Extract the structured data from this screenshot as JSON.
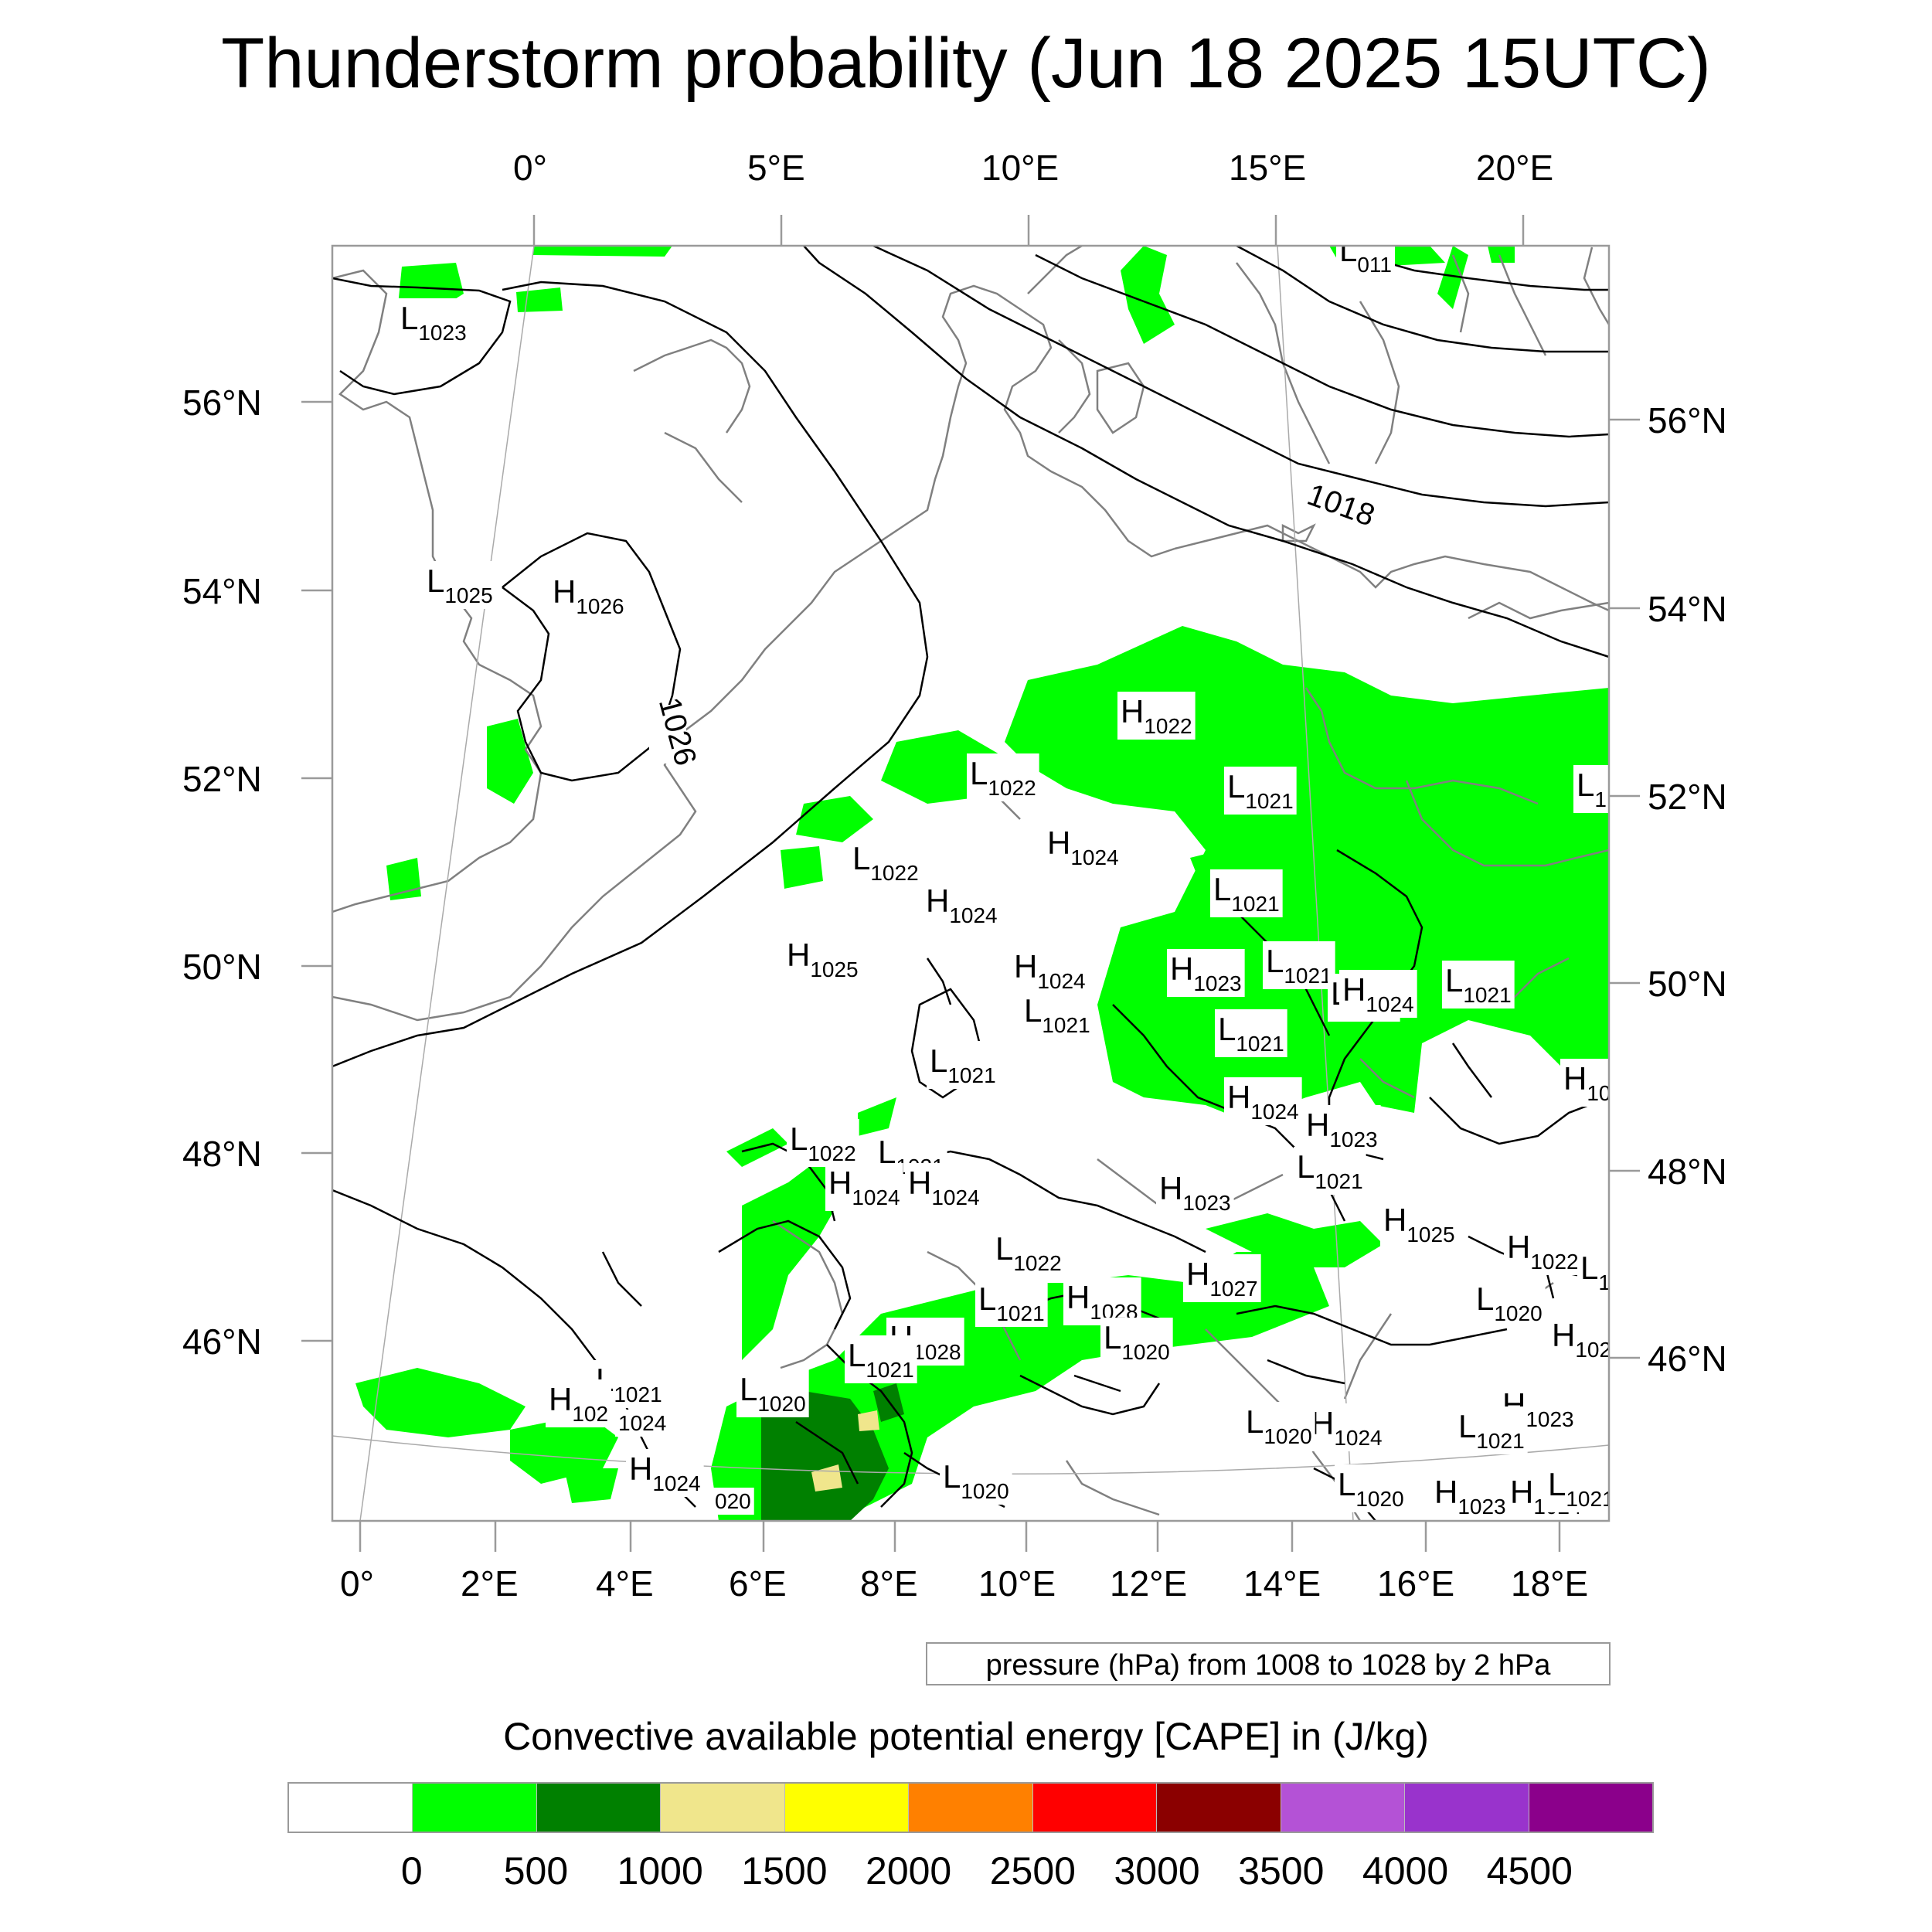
{
  "title": "Thunderstorm probability (Jun 18 2025 15UTC)",
  "top_lon_labels": [
    "0°",
    "5°E",
    "10°E",
    "15°E",
    "20°E"
  ],
  "bottom_lon_labels": [
    "0°",
    "2°E",
    "4°E",
    "6°E",
    "8°E",
    "10°E",
    "12°E",
    "14°E",
    "16°E",
    "18°E"
  ],
  "left_lat_labels": [
    "56°N",
    "54°N",
    "52°N",
    "50°N",
    "48°N",
    "46°N"
  ],
  "right_lat_labels": [
    "56°N",
    "54°N",
    "52°N",
    "50°N",
    "48°N",
    "46°N"
  ],
  "contour_note": "pressure (hPa) from 1008 to 1028 by 2 hPa",
  "isobar_labels": [
    {
      "text": "1018"
    },
    {
      "text": "1026"
    }
  ],
  "pressure_centers": [
    {
      "type": "L",
      "value": "011"
    },
    {
      "type": "L",
      "value": "1023"
    },
    {
      "type": "L",
      "value": "1025"
    },
    {
      "type": "H",
      "value": "1026"
    },
    {
      "type": "H",
      "value": "1022"
    },
    {
      "type": "L",
      "value": "1022"
    },
    {
      "type": "L",
      "value": "1021"
    },
    {
      "type": "L",
      "value": "1022"
    },
    {
      "type": "H",
      "value": "1024"
    },
    {
      "type": "H",
      "value": "1024"
    },
    {
      "type": "L",
      "value": "1021"
    },
    {
      "type": "H",
      "value": "1025"
    },
    {
      "type": "H",
      "value": "1024"
    },
    {
      "type": "H",
      "value": "1023"
    },
    {
      "type": "L",
      "value": "1021"
    },
    {
      "type": "L",
      "value": "1020"
    },
    {
      "type": "H",
      "value": "1024"
    },
    {
      "type": "L",
      "value": "1021"
    },
    {
      "type": "L",
      "value": "1021"
    },
    {
      "type": "L",
      "value": "1021"
    },
    {
      "type": "L",
      "value": "1021"
    },
    {
      "type": "H",
      "value": "1024"
    },
    {
      "type": "H",
      "value": "1023"
    },
    {
      "type": "L",
      "value": "1022"
    },
    {
      "type": "L",
      "value": "1021"
    },
    {
      "type": "L",
      "value": "1021"
    },
    {
      "type": "H",
      "value": "1024"
    },
    {
      "type": "H",
      "value": "1024"
    },
    {
      "type": "H",
      "value": "1023"
    },
    {
      "type": "L",
      "value": "1022"
    },
    {
      "type": "H",
      "value": "1025"
    },
    {
      "type": "H",
      "value": "1022"
    },
    {
      "type": "H",
      "value": "1027"
    },
    {
      "type": "L",
      "value": "1021"
    },
    {
      "type": "H",
      "value": "1028"
    },
    {
      "type": "L",
      "value": "1020"
    },
    {
      "type": "H",
      "value": "1028"
    },
    {
      "type": "L",
      "value": "1021"
    },
    {
      "type": "L",
      "value": "1020"
    },
    {
      "type": "L",
      "value": "1021"
    },
    {
      "type": "H",
      "value": "102"
    },
    {
      "type": "",
      "value": "1024"
    },
    {
      "type": "H",
      "value": "1024"
    },
    {
      "type": "",
      "value": "020"
    },
    {
      "type": "L",
      "value": "1020"
    },
    {
      "type": "L",
      "value": "1020"
    },
    {
      "type": "H",
      "value": "1024"
    },
    {
      "type": "L",
      "value": "1020"
    },
    {
      "type": "H",
      "value": "1023"
    },
    {
      "type": "L",
      "value": "1021"
    },
    {
      "type": "H",
      "value": "1023"
    },
    {
      "type": "H",
      "value": "1024"
    },
    {
      "type": "L",
      "value": "1020"
    },
    {
      "type": "H",
      "value": "102"
    },
    {
      "type": "L",
      "value": "1021"
    },
    {
      "type": "L",
      "value": "1"
    },
    {
      "type": "H",
      "value": "10"
    },
    {
      "type": "L",
      "value": "1"
    }
  ],
  "legend": {
    "title": "Convective available potential energy [CAPE] in (J/kg)",
    "colors": [
      "#ffffff",
      "#00ff00",
      "#008000",
      "#f0e68c",
      "#ffff00",
      "#ff8000",
      "#ff0000",
      "#8b0000",
      "#b452d6",
      "#9933cc",
      "#8b008b"
    ],
    "ticks": [
      "0",
      "500",
      "1000",
      "1500",
      "2000",
      "2500",
      "3000",
      "3500",
      "4000",
      "4500"
    ]
  },
  "colors": {
    "cape_low": "#00ff00",
    "cape_mid": "#008000",
    "cape_high": "#f0e68c",
    "coastline": "#808080",
    "isobar": "#000000"
  }
}
